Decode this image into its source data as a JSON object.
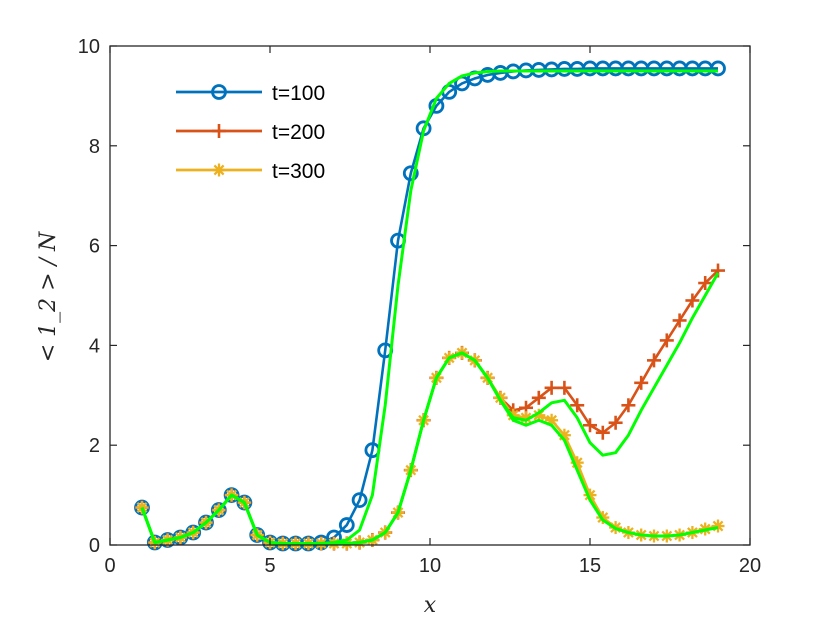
{
  "chart_data": {
    "type": "line",
    "title": "",
    "xlabel": "x",
    "ylabel": "< 1_2 > / N",
    "xlim": [
      0,
      20
    ],
    "ylim": [
      0,
      10
    ],
    "xticks": [
      0,
      5,
      10,
      15,
      20
    ],
    "yticks": [
      0,
      2,
      4,
      6,
      8,
      10
    ],
    "xtick_labels": [
      "0",
      "5",
      "10",
      "15",
      "20"
    ],
    "ytick_labels": [
      "0",
      "2",
      "4",
      "6",
      "8",
      "10"
    ],
    "grid": false,
    "legend_position": "top-left",
    "x": [
      1.0,
      1.4,
      1.8,
      2.2,
      2.6,
      3.0,
      3.4,
      3.8,
      4.2,
      4.6,
      5.0,
      5.4,
      5.8,
      6.2,
      6.6,
      7.0,
      7.4,
      7.8,
      8.2,
      8.6,
      9.0,
      9.4,
      9.8,
      10.2,
      10.6,
      11.0,
      11.4,
      11.8,
      12.2,
      12.6,
      13.0,
      13.4,
      13.8,
      14.2,
      14.6,
      15.0,
      15.4,
      15.8,
      16.2,
      16.6,
      17.0,
      17.4,
      17.8,
      18.2,
      18.6,
      19.0
    ],
    "series": [
      {
        "name": "t=100",
        "color": "#0072BD",
        "marker": "circle",
        "values": [
          0.75,
          0.05,
          0.1,
          0.15,
          0.25,
          0.45,
          0.7,
          1.0,
          0.85,
          0.2,
          0.05,
          0.03,
          0.03,
          0.03,
          0.05,
          0.15,
          0.4,
          0.9,
          1.9,
          3.9,
          6.1,
          7.45,
          8.35,
          8.8,
          9.08,
          9.25,
          9.35,
          9.42,
          9.46,
          9.49,
          9.51,
          9.52,
          9.53,
          9.54,
          9.54,
          9.55,
          9.55,
          9.55,
          9.55,
          9.55,
          9.55,
          9.55,
          9.55,
          9.55,
          9.55,
          9.55
        ]
      },
      {
        "name": "t=200",
        "color": "#D95319",
        "marker": "plus",
        "values": [
          0.75,
          0.05,
          0.1,
          0.15,
          0.25,
          0.45,
          0.7,
          1.0,
          0.85,
          0.2,
          0.05,
          0.03,
          0.03,
          0.03,
          0.03,
          0.03,
          0.03,
          0.05,
          0.1,
          0.25,
          0.65,
          1.5,
          2.5,
          3.35,
          3.75,
          3.85,
          3.7,
          3.35,
          2.95,
          2.7,
          2.75,
          2.95,
          3.15,
          3.15,
          2.8,
          2.4,
          2.25,
          2.45,
          2.8,
          3.25,
          3.7,
          4.1,
          4.5,
          4.9,
          5.25,
          5.5
        ]
      },
      {
        "name": "t=300",
        "color": "#EDB120",
        "marker": "star",
        "values": [
          0.75,
          0.05,
          0.1,
          0.15,
          0.25,
          0.45,
          0.7,
          1.0,
          0.85,
          0.2,
          0.05,
          0.03,
          0.03,
          0.03,
          0.03,
          0.03,
          0.03,
          0.05,
          0.1,
          0.25,
          0.65,
          1.5,
          2.5,
          3.35,
          3.75,
          3.85,
          3.7,
          3.35,
          2.95,
          2.6,
          2.55,
          2.6,
          2.5,
          2.2,
          1.65,
          1.0,
          0.55,
          0.35,
          0.25,
          0.2,
          0.18,
          0.18,
          0.2,
          0.25,
          0.32,
          0.38
        ]
      }
    ],
    "reference_lines": {
      "color": "#00FF00",
      "series": [
        {
          "name": "reference-t100",
          "values": [
            0.75,
            0.05,
            0.1,
            0.15,
            0.25,
            0.45,
            0.7,
            1.0,
            0.85,
            0.2,
            0.05,
            0.03,
            0.03,
            0.03,
            0.03,
            0.05,
            0.1,
            0.3,
            1.0,
            2.8,
            5.2,
            7.1,
            8.3,
            8.95,
            9.25,
            9.4,
            9.46,
            9.49,
            9.5,
            9.5,
            9.5,
            9.5,
            9.5,
            9.5,
            9.5,
            9.5,
            9.5,
            9.5,
            9.5,
            9.5,
            9.5,
            9.5,
            9.5,
            9.5,
            9.5,
            9.5
          ]
        },
        {
          "name": "reference-t200",
          "values": [
            0.75,
            0.05,
            0.1,
            0.15,
            0.25,
            0.45,
            0.7,
            1.0,
            0.85,
            0.2,
            0.05,
            0.03,
            0.03,
            0.03,
            0.03,
            0.03,
            0.03,
            0.05,
            0.1,
            0.25,
            0.65,
            1.5,
            2.5,
            3.35,
            3.75,
            3.85,
            3.7,
            3.35,
            2.9,
            2.55,
            2.5,
            2.65,
            2.85,
            2.9,
            2.55,
            2.05,
            1.8,
            1.85,
            2.2,
            2.7,
            3.15,
            3.6,
            4.05,
            4.55,
            5.0,
            5.45
          ]
        },
        {
          "name": "reference-t300",
          "values": [
            0.75,
            0.05,
            0.1,
            0.15,
            0.25,
            0.45,
            0.7,
            1.0,
            0.85,
            0.2,
            0.05,
            0.03,
            0.03,
            0.03,
            0.03,
            0.03,
            0.03,
            0.05,
            0.1,
            0.25,
            0.65,
            1.5,
            2.5,
            3.35,
            3.75,
            3.85,
            3.7,
            3.35,
            2.9,
            2.5,
            2.4,
            2.5,
            2.4,
            2.1,
            1.5,
            0.9,
            0.5,
            0.33,
            0.25,
            0.2,
            0.18,
            0.18,
            0.2,
            0.25,
            0.3,
            0.35
          ]
        }
      ]
    }
  }
}
